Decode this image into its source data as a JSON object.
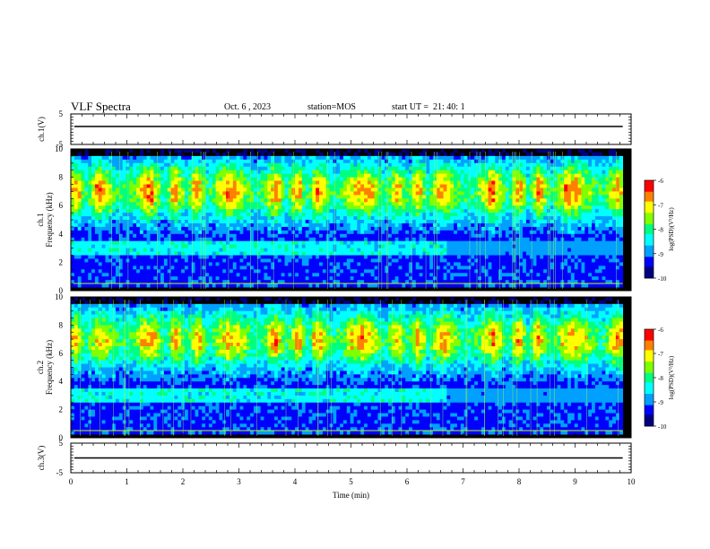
{
  "header": {
    "title": "VLF Spectra",
    "date": "Oct. 6 , 2023",
    "station": "station=MOS",
    "start": "start UT =  21: 40: 1"
  },
  "chart_data": {
    "type": "heatmap",
    "x_axis": {
      "label": "Time  (min)",
      "range": [
        0,
        10
      ],
      "ticks": [
        "0",
        "1",
        "2",
        "3",
        "4",
        "5",
        "6",
        "7",
        "8",
        "9",
        "10"
      ]
    },
    "panels": [
      {
        "id": "ch1v",
        "ylabel": "ch.1(V)",
        "ylim": [
          -5,
          5
        ],
        "ticks": [
          "5",
          "-5"
        ],
        "trace_level": 0
      },
      {
        "id": "ch1",
        "ylabel_top": "ch.1",
        "ylabel": "Frequency (kHz)",
        "ylim": [
          0,
          10
        ],
        "ticks": [
          "0",
          "2",
          "4",
          "6",
          "8",
          "10"
        ],
        "data_end_min": 9.85,
        "transition_min": 6.7,
        "colorbar": {
          "label": "log(PSD)(V²/Hz)",
          "range": [
            -10,
            -6
          ],
          "ticks": [
            "-6",
            "-7",
            "-8",
            "-9",
            "-10"
          ]
        }
      },
      {
        "id": "ch2",
        "ylabel_top": "ch.2",
        "ylabel": "Frequency (kHz)",
        "ylim": [
          0,
          10
        ],
        "ticks": [
          "0",
          "2",
          "4",
          "6",
          "8",
          "10"
        ],
        "data_end_min": 9.85,
        "transition_min": 6.7,
        "colorbar": {
          "label": "log(PSD)(V²/Hz)",
          "range": [
            -10,
            -6
          ],
          "ticks": [
            "-6",
            "-7",
            "-8",
            "-9",
            "-10"
          ]
        }
      },
      {
        "id": "ch3v",
        "ylabel": "ch.3(V)",
        "ylim": [
          -5,
          5
        ],
        "ticks": [
          "5",
          "-5"
        ],
        "trace_level": 0
      }
    ],
    "colormap": [
      "#000080",
      "#0000ff",
      "#00a0ff",
      "#00ffff",
      "#00ff80",
      "#80ff00",
      "#ffff00",
      "#ff8000",
      "#ff0000"
    ]
  }
}
